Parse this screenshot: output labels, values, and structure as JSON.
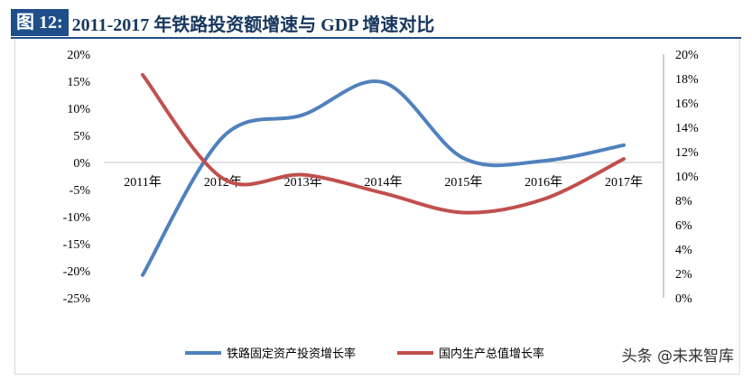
{
  "title": {
    "number": "图 12:",
    "text": "2011-2017 年铁路投资额增速与 GDP 增速对比"
  },
  "watermark": "头条 @未来智库",
  "chart_data": {
    "type": "line",
    "categories": [
      "2011年",
      "2012年",
      "2013年",
      "2014年",
      "2015年",
      "2016年",
      "2017年"
    ],
    "y_left": {
      "range": [
        -25,
        20
      ],
      "ticks": [
        20,
        15,
        10,
        5,
        0,
        -5,
        -10,
        -15,
        -20,
        -25
      ],
      "unit": "%"
    },
    "y_right": {
      "range": [
        0,
        20
      ],
      "ticks": [
        20,
        18,
        16,
        14,
        12,
        10,
        8,
        6,
        4,
        2,
        0
      ],
      "unit": "%"
    },
    "series": [
      {
        "name": "铁路固定资产投资增长率",
        "axis": "left",
        "color": "#4f81bd",
        "values": [
          -20.8,
          4.7,
          8.8,
          14.8,
          0.8,
          0.3,
          3.2
        ]
      },
      {
        "name": "国内生产总值增长率",
        "axis": "right",
        "color": "#c0504d",
        "values": [
          18.3,
          9.8,
          10.1,
          8.6,
          7.0,
          8.1,
          11.4
        ]
      }
    ],
    "legend": "bottom",
    "grid": false
  }
}
